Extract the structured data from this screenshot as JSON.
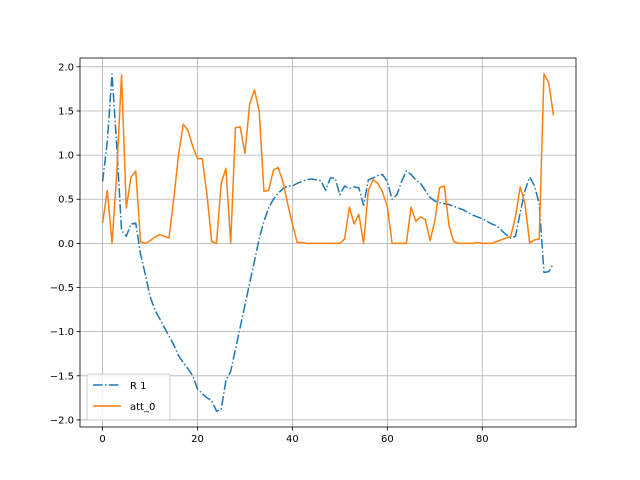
{
  "chart_data": {
    "type": "line",
    "title": "",
    "xlabel": "",
    "ylabel": "",
    "xlim": [
      -4.75,
      99.75
    ],
    "ylim": [
      -2.08,
      2.1
    ],
    "grid": true,
    "legend_position": "lower-left",
    "x_ticks": [
      0,
      20,
      40,
      60,
      80
    ],
    "x_tick_labels": [
      "0",
      "20",
      "40",
      "60",
      "80"
    ],
    "y_ticks": [
      -2.0,
      -1.5,
      -1.0,
      -0.5,
      0.0,
      0.5,
      1.0,
      1.5,
      2.0
    ],
    "y_tick_labels": [
      "−2.0",
      "−1.5",
      "−1.0",
      "−0.5",
      "0.0",
      "0.5",
      "1.0",
      "1.5",
      "2.0"
    ],
    "series": [
      {
        "name": "R 1",
        "color": "#1f77b4",
        "style": "dashdot",
        "x": [
          0,
          1,
          2,
          3,
          4,
          5,
          6,
          7,
          8,
          9,
          10,
          11,
          12,
          13,
          14,
          15,
          16,
          17,
          18,
          19,
          20,
          21,
          22,
          23,
          24,
          25,
          26,
          27,
          28,
          29,
          30,
          31,
          32,
          33,
          34,
          35,
          36,
          37,
          38,
          39,
          40,
          41,
          42,
          43,
          44,
          45,
          46,
          47,
          48,
          49,
          50,
          51,
          52,
          53,
          54,
          55,
          56,
          57,
          58,
          59,
          60,
          61,
          62,
          63,
          64,
          65,
          66,
          67,
          68,
          69,
          70,
          71,
          72,
          73,
          74,
          75,
          76,
          77,
          78,
          79,
          80,
          81,
          82,
          83,
          84,
          85,
          86,
          87,
          88,
          89,
          90,
          91,
          92,
          93,
          94,
          95
        ],
        "values": [
          0.7,
          1.15,
          1.92,
          1.1,
          0.15,
          0.08,
          0.22,
          0.23,
          -0.12,
          -0.35,
          -0.6,
          -0.75,
          -0.85,
          -0.95,
          -1.05,
          -1.15,
          -1.27,
          -1.35,
          -1.42,
          -1.5,
          -1.65,
          -1.7,
          -1.75,
          -1.78,
          -1.9,
          -1.88,
          -1.55,
          -1.45,
          -1.2,
          -0.95,
          -0.7,
          -0.45,
          -0.2,
          0.05,
          0.25,
          0.4,
          0.5,
          0.57,
          0.62,
          0.65,
          0.65,
          0.68,
          0.7,
          0.72,
          0.73,
          0.72,
          0.71,
          0.6,
          0.74,
          0.74,
          0.55,
          0.65,
          0.62,
          0.64,
          0.63,
          0.43,
          0.72,
          0.74,
          0.77,
          0.78,
          0.7,
          0.5,
          0.55,
          0.7,
          0.82,
          0.78,
          0.72,
          0.68,
          0.6,
          0.52,
          0.48,
          0.46,
          0.45,
          0.44,
          0.42,
          0.4,
          0.38,
          0.35,
          0.32,
          0.3,
          0.28,
          0.25,
          0.22,
          0.2,
          0.15,
          0.1,
          0.06,
          0.08,
          0.35,
          0.6,
          0.75,
          0.65,
          0.45,
          -0.33,
          -0.32,
          -0.23
        ]
      },
      {
        "name": "att_0",
        "color": "#ff7f0e",
        "style": "solid",
        "x": [
          0,
          1,
          2,
          3,
          4,
          5,
          6,
          7,
          8,
          9,
          10,
          11,
          12,
          13,
          14,
          15,
          16,
          17,
          18,
          19,
          20,
          21,
          22,
          23,
          24,
          25,
          26,
          27,
          28,
          29,
          30,
          31,
          32,
          33,
          34,
          35,
          36,
          37,
          38,
          39,
          40,
          41,
          42,
          43,
          44,
          45,
          46,
          47,
          48,
          49,
          50,
          51,
          52,
          53,
          54,
          55,
          56,
          57,
          58,
          59,
          60,
          61,
          62,
          63,
          64,
          65,
          66,
          67,
          68,
          69,
          70,
          71,
          72,
          73,
          74,
          75,
          76,
          77,
          78,
          79,
          80,
          81,
          82,
          83,
          84,
          85,
          86,
          87,
          88,
          89,
          90,
          91,
          92,
          93,
          94,
          95
        ],
        "values": [
          0.23,
          0.6,
          0.0,
          0.8,
          1.91,
          0.4,
          0.75,
          0.82,
          0.02,
          0.0,
          0.03,
          0.07,
          0.1,
          0.08,
          0.06,
          0.5,
          1.0,
          1.35,
          1.28,
          1.1,
          0.96,
          0.96,
          0.55,
          0.02,
          0.0,
          0.68,
          0.85,
          0.0,
          1.31,
          1.32,
          1.02,
          1.58,
          1.74,
          1.5,
          0.59,
          0.6,
          0.83,
          0.86,
          0.7,
          0.45,
          0.22,
          0.01,
          0.01,
          0.0,
          0.0,
          0.0,
          0.0,
          0.0,
          0.0,
          0.0,
          0.0,
          0.05,
          0.41,
          0.22,
          0.33,
          0.0,
          0.6,
          0.72,
          0.68,
          0.58,
          0.42,
          0.0,
          0.0,
          0.0,
          0.0,
          0.41,
          0.25,
          0.3,
          0.27,
          0.03,
          0.25,
          0.63,
          0.65,
          0.2,
          0.02,
          0.0,
          0.0,
          0.0,
          0.0,
          0.01,
          0.0,
          0.0,
          0.0,
          0.02,
          0.04,
          0.06,
          0.08,
          0.3,
          0.64,
          0.45,
          0.0,
          0.04,
          0.05,
          1.92,
          1.82,
          1.45
        ]
      }
    ]
  }
}
